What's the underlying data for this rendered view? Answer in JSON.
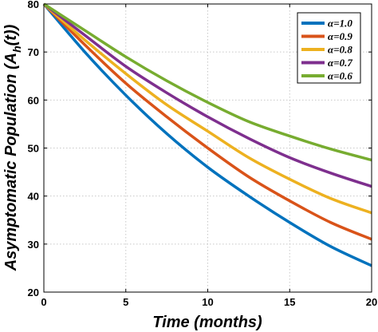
{
  "chart_data": {
    "type": "line",
    "xlabel": "Time (months)",
    "ylabel": "Asymptomatic Population (A_h(t))",
    "ylabel_parts": {
      "main": "Asymptomatic Population (A",
      "sub": "h",
      "end": "(t))"
    },
    "xlim": [
      0,
      20
    ],
    "ylim": [
      20,
      80
    ],
    "xticks": [
      0,
      5,
      10,
      15,
      20
    ],
    "yticks": [
      20,
      30,
      40,
      50,
      60,
      70,
      80
    ],
    "grid": true,
    "legend_position": "top-right",
    "x": [
      0,
      2.5,
      5,
      7.5,
      10,
      12.5,
      15,
      17.5,
      20
    ],
    "series": [
      {
        "name": "α=1.0",
        "color": "#0072BD",
        "values": [
          80,
          70,
          61,
          53,
          46,
          40,
          34.5,
          29.5,
          25.5
        ]
      },
      {
        "name": "α=0.9",
        "color": "#D95319",
        "values": [
          80,
          71.5,
          63.5,
          56.5,
          50,
          44,
          39,
          34.5,
          31
        ]
      },
      {
        "name": "α=0.8",
        "color": "#EDB120",
        "values": [
          80,
          72.5,
          65.5,
          59,
          53.5,
          48,
          43.5,
          39.5,
          36.5
        ]
      },
      {
        "name": "α=0.7",
        "color": "#7E2F8E",
        "values": [
          80,
          73.5,
          67,
          61.5,
          56.5,
          52,
          48,
          44.8,
          42
        ]
      },
      {
        "name": "α=0.6",
        "color": "#77AC30",
        "values": [
          80,
          74.5,
          69,
          64,
          59.5,
          55.5,
          52.5,
          49.8,
          47.5
        ]
      }
    ]
  }
}
